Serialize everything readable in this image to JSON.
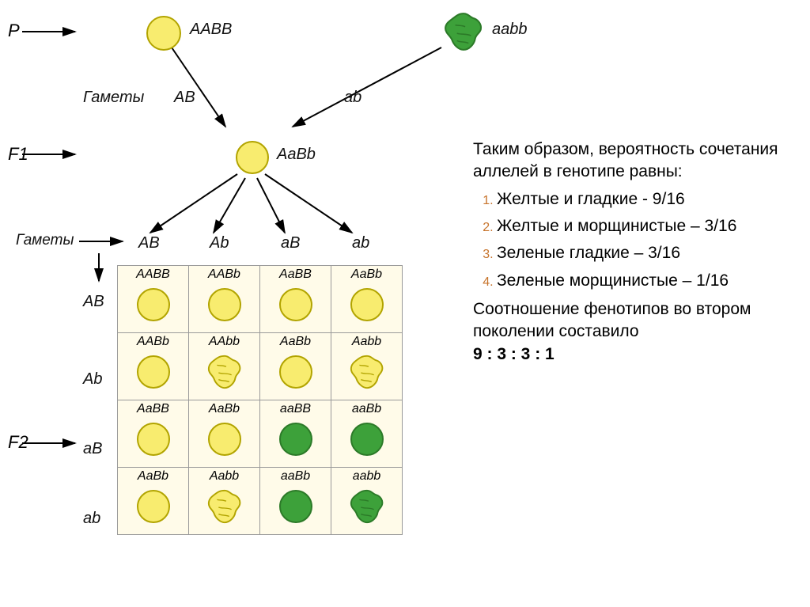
{
  "colors": {
    "yellow_fill": "#f8ec6f",
    "yellow_stroke": "#b2a400",
    "green_fill": "#3da13a",
    "green_stroke": "#2c7a28",
    "table_bg": "#fffbe9",
    "table_border": "#9a9a9a",
    "marker_color": "#c7742c",
    "text_color": "#000000",
    "arrow_color": "#000000"
  },
  "generations": {
    "P": "P",
    "F1": "F1",
    "F2": "F2"
  },
  "labels": {
    "gametes": "Гаметы",
    "parent1_geno": "AABB",
    "parent2_geno": "aabb",
    "gamete_AB": "AB",
    "gamete_ab": "ab",
    "f1_geno": "AaBb",
    "f1_gametes": [
      "AB",
      "Ab",
      "aB",
      "ab"
    ]
  },
  "punnett": {
    "col_headers": [
      "AB",
      "Ab",
      "aB",
      "ab"
    ],
    "row_headers": [
      "AB",
      "Ab",
      "aB",
      "ab"
    ],
    "cells": [
      [
        {
          "geno": "AABB",
          "color": "yellow",
          "shape": "smooth"
        },
        {
          "geno": "AABb",
          "color": "yellow",
          "shape": "smooth"
        },
        {
          "geno": "AaBB",
          "color": "yellow",
          "shape": "smooth"
        },
        {
          "geno": "AaBb",
          "color": "yellow",
          "shape": "smooth"
        }
      ],
      [
        {
          "geno": "AABb",
          "color": "yellow",
          "shape": "smooth"
        },
        {
          "geno": "AAbb",
          "color": "yellow",
          "shape": "wrinkled"
        },
        {
          "geno": "AaBb",
          "color": "yellow",
          "shape": "smooth"
        },
        {
          "geno": "Aabb",
          "color": "yellow",
          "shape": "wrinkled"
        }
      ],
      [
        {
          "geno": "AaBB",
          "color": "yellow",
          "shape": "smooth"
        },
        {
          "geno": "AaBb",
          "color": "yellow",
          "shape": "smooth"
        },
        {
          "geno": "aaBB",
          "color": "green",
          "shape": "smooth"
        },
        {
          "geno": "aaBb",
          "color": "green",
          "shape": "smooth"
        }
      ],
      [
        {
          "geno": "AaBb",
          "color": "yellow",
          "shape": "smooth"
        },
        {
          "geno": "Aabb",
          "color": "yellow",
          "shape": "wrinkled"
        },
        {
          "geno": "aaBb",
          "color": "green",
          "shape": "smooth"
        },
        {
          "geno": "aabb",
          "color": "green",
          "shape": "wrinkled"
        }
      ]
    ]
  },
  "text": {
    "intro": "Таким образом, вероятность сочетания аллелей в генотипе равны:",
    "phenotypes": [
      "Желтые и гладкие - 9/16",
      "Желтые и морщинистые – 3/16",
      "Зеленые гладкие – 3/16",
      "Зеленые морщинистые – 1/16"
    ],
    "ratio_line": "Соотношение фенотипов во втором поколении составило",
    "ratio_value": "9 : 3 : 3 : 1"
  }
}
